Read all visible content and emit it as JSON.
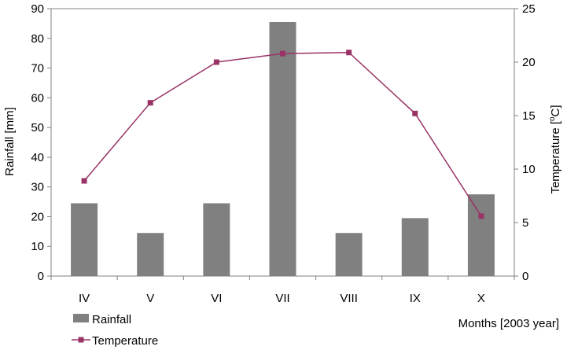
{
  "chart_data": {
    "type": "bar",
    "categories": [
      "IV",
      "V",
      "VI",
      "VII",
      "VIII",
      "IX",
      "X"
    ],
    "series": [
      {
        "name": "Rainfall",
        "kind": "bar",
        "axis": "left",
        "color": "#808080",
        "values": [
          24.5,
          14.5,
          24.5,
          85.5,
          14.5,
          19.5,
          27.5
        ]
      },
      {
        "name": "Temperature",
        "kind": "line",
        "axis": "right",
        "color": "#993366",
        "marker": "square",
        "values": [
          8.9,
          16.2,
          20.0,
          20.8,
          20.9,
          15.2,
          5.6
        ]
      }
    ],
    "ylabel": "Rainfall [mm]",
    "ylim": [
      0,
      90
    ],
    "yticks": [
      0,
      10,
      20,
      30,
      40,
      50,
      60,
      70,
      80,
      90
    ],
    "y2label_main": "Temperature [",
    "y2label_sup": "o",
    "y2label_end": "C]",
    "y2lim": [
      0,
      25
    ],
    "y2ticks": [
      0,
      5,
      10,
      15,
      20,
      25
    ],
    "xlabel": "Months [2003 year]",
    "grid": false,
    "legend_position": "bottom-left"
  }
}
